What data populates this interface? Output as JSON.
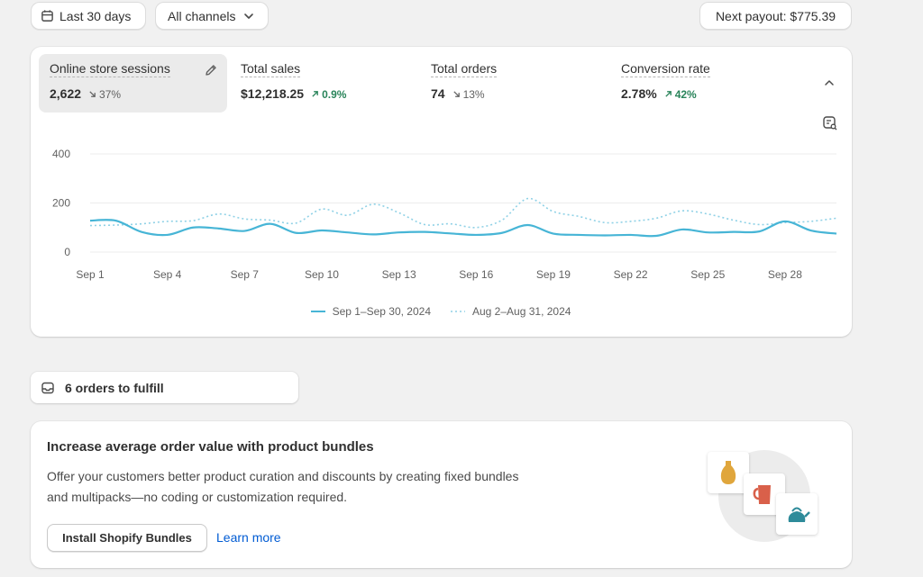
{
  "filters": {
    "date_range": "Last 30 days",
    "channel": "All channels",
    "payout": "Next payout: $775.39"
  },
  "metrics": [
    {
      "label": "Online store sessions",
      "value": "2,622",
      "change": "37%",
      "direction": "down"
    },
    {
      "label": "Total sales",
      "value": "$12,218.25",
      "change": "0.9%",
      "direction": "up"
    },
    {
      "label": "Total orders",
      "value": "74",
      "change": "13%",
      "direction": "down"
    },
    {
      "label": "Conversion rate",
      "value": "2.78%",
      "change": "42%",
      "direction": "up"
    }
  ],
  "chart_data": {
    "type": "line",
    "y_ticks": [
      "400",
      "200",
      "0"
    ],
    "ylim": [
      0,
      400
    ],
    "x_ticks": [
      "Sep 1",
      "Sep 4",
      "Sep 7",
      "Sep 10",
      "Sep 13",
      "Sep 16",
      "Sep 19",
      "Sep 22",
      "Sep 25",
      "Sep 28"
    ],
    "x": [
      1,
      2,
      3,
      4,
      5,
      6,
      7,
      8,
      9,
      10,
      11,
      12,
      13,
      14,
      15,
      16,
      17,
      18,
      19,
      20,
      21,
      22,
      23,
      24,
      25,
      26,
      27,
      28,
      29,
      30
    ],
    "grid": true,
    "legend_position": "bottom",
    "series": [
      {
        "name": "Sep 1–Sep 30, 2024",
        "style": "solid",
        "color": "#47b5d6",
        "values": [
          128,
          128,
          82,
          70,
          100,
          96,
          86,
          115,
          78,
          88,
          80,
          72,
          80,
          82,
          76,
          70,
          78,
          110,
          75,
          70,
          68,
          70,
          66,
          92,
          80,
          82,
          84,
          125,
          88,
          75
        ]
      },
      {
        "name": "Aug 2–Aug 31, 2024",
        "style": "dotted",
        "color": "#8fd1e6",
        "values": [
          108,
          110,
          115,
          125,
          128,
          155,
          135,
          130,
          118,
          175,
          150,
          195,
          160,
          112,
          115,
          100,
          130,
          218,
          165,
          145,
          120,
          125,
          138,
          168,
          155,
          130,
          112,
          120,
          125,
          138
        ]
      }
    ]
  },
  "fulfill": {
    "label": "6 orders to fulfill"
  },
  "promo": {
    "title": "Increase average order value with product bundles",
    "body_line1": "Offer your customers better product curation and discounts by creating fixed bundles",
    "body_line2": "and multipacks—no coding or customization required.",
    "primary_button": "Install Shopify Bundles",
    "link": "Learn more"
  },
  "colors": {
    "accent": "#47b5d6",
    "positive": "#29845a",
    "link": "#005bd3"
  }
}
